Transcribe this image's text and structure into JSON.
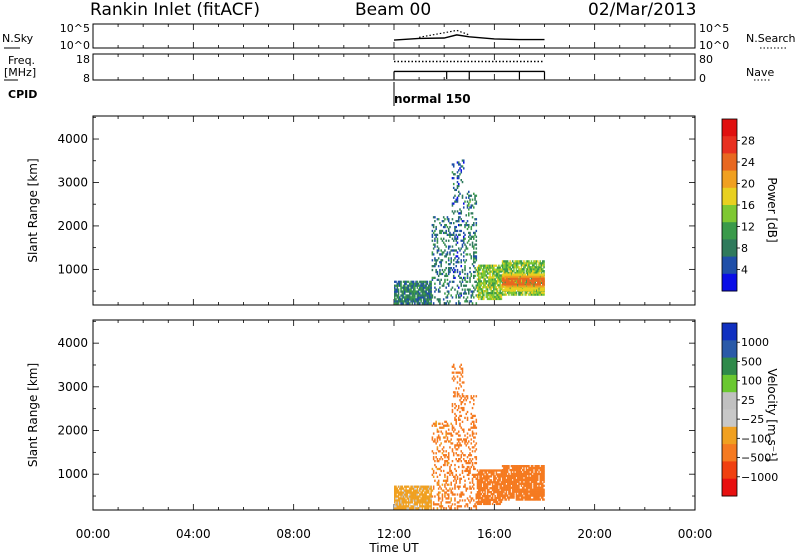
{
  "header": {
    "station": "Rankin Inlet (fitACF)",
    "beam": "Beam 00",
    "date": "02/Mar/2013"
  },
  "labels": {
    "nsky": "N.Sky",
    "nsearch": "N.Search",
    "freq": "Freq.",
    "mhz": "[MHz]",
    "nave": "Nave",
    "cpid": "CPID",
    "cpid_value": "normal 150",
    "slant_range": "Slant Range [km]",
    "power": "Power [dB]",
    "velocity": "Velocity [m s⁻¹]",
    "time_axis": "Time UT"
  },
  "colors": {
    "power_scale": [
      "#0a0ee6",
      "#1f4fa8",
      "#2f7a5c",
      "#3a9a4a",
      "#7ec832",
      "#e8d020",
      "#f0a020",
      "#e86820",
      "#e83020",
      "#e01010"
    ],
    "velocity_scale": [
      "#e81010",
      "#f04010",
      "#f57a20",
      "#f0a020",
      "#c8c8c8",
      "#c0c0c0",
      "#6ac830",
      "#2f8a4a",
      "#2a5aa8",
      "#1030c0"
    ]
  },
  "chart_data": [
    {
      "type": "line",
      "panel": "noise",
      "y_left_ticks": [
        "10^5",
        "10^0"
      ],
      "y_right_ticks": [
        "10^5",
        "10^0"
      ],
      "series": [
        {
          "name": "N.Sky",
          "style": "solid",
          "x": [
            "12:00",
            "13:00",
            "14:00",
            "14:30",
            "15:00",
            "16:00",
            "17:00",
            "18:00"
          ],
          "y": [
            30,
            80,
            100,
            600,
            200,
            60,
            40,
            40
          ]
        },
        {
          "name": "N.Search",
          "style": "dotted",
          "x": [
            "13:00",
            "14:00",
            "14:30",
            "15:00"
          ],
          "y": [
            150,
            2000,
            8000,
            600
          ]
        }
      ]
    },
    {
      "type": "line",
      "panel": "frequency",
      "y_left_ticks": [
        "18",
        "8"
      ],
      "y_right_ticks": [
        "80",
        "0"
      ],
      "series": [
        {
          "name": "Freq.",
          "style": "solid",
          "x": [
            "12:00",
            "18:00"
          ],
          "y": [
            11,
            11
          ]
        },
        {
          "name": "Nave",
          "style": "dotted",
          "x": [
            "12:00",
            "18:00"
          ],
          "y": [
            60,
            60
          ]
        }
      ]
    },
    {
      "type": "heatmap",
      "panel": "power",
      "x_ticks": [
        "00:00",
        "04:00",
        "08:00",
        "12:00",
        "16:00",
        "20:00",
        "00:00"
      ],
      "y_ticks": [
        "1000",
        "2000",
        "3000",
        "4000"
      ],
      "ylim": [
        180,
        4530
      ],
      "colorbar_ticks": [
        "28",
        "24",
        "20",
        "16",
        "12",
        "8",
        "4"
      ],
      "clim": [
        0,
        32
      ],
      "regions": [
        {
          "t0": 12.0,
          "t1": 13.5,
          "r0": 200,
          "r1": 700,
          "level": 8
        },
        {
          "t0": 13.5,
          "t1": 14.3,
          "r0": 200,
          "r1": 2200,
          "level": 8
        },
        {
          "t0": 14.3,
          "t1": 14.8,
          "r0": 200,
          "r1": 3500,
          "level": 6
        },
        {
          "t0": 14.8,
          "t1": 15.3,
          "r0": 200,
          "r1": 2800,
          "level": 9
        },
        {
          "t0": 15.3,
          "t1": 16.3,
          "r0": 300,
          "r1": 1100,
          "level": 14
        },
        {
          "t0": 16.3,
          "t1": 18.0,
          "r0": 400,
          "r1": 1200,
          "level": 14
        },
        {
          "t0": 16.3,
          "t1": 18.0,
          "r0": 500,
          "r1": 900,
          "level": 24
        }
      ]
    },
    {
      "type": "heatmap",
      "panel": "velocity",
      "x_ticks": [
        "00:00",
        "04:00",
        "08:00",
        "12:00",
        "16:00",
        "20:00",
        "00:00"
      ],
      "y_ticks": [
        "1000",
        "2000",
        "3000",
        "4000"
      ],
      "ylim": [
        180,
        4530
      ],
      "colorbar_ticks": [
        "1000",
        "500",
        "100",
        "25",
        "−25",
        "−100",
        "−500",
        "−1000"
      ],
      "regions": [
        {
          "t0": 12.0,
          "t1": 13.5,
          "r0": 200,
          "r1": 700,
          "velocity": -40
        },
        {
          "t0": 13.5,
          "t1": 14.3,
          "r0": 200,
          "r1": 2200,
          "velocity": -150
        },
        {
          "t0": 14.3,
          "t1": 14.8,
          "r0": 200,
          "r1": 3500,
          "velocity": -300
        },
        {
          "t0": 14.8,
          "t1": 15.3,
          "r0": 200,
          "r1": 2800,
          "velocity": -250
        },
        {
          "t0": 15.3,
          "t1": 16.3,
          "r0": 300,
          "r1": 1100,
          "velocity": -200
        },
        {
          "t0": 16.3,
          "t1": 18.0,
          "r0": 400,
          "r1": 1200,
          "velocity": -300
        }
      ]
    }
  ]
}
